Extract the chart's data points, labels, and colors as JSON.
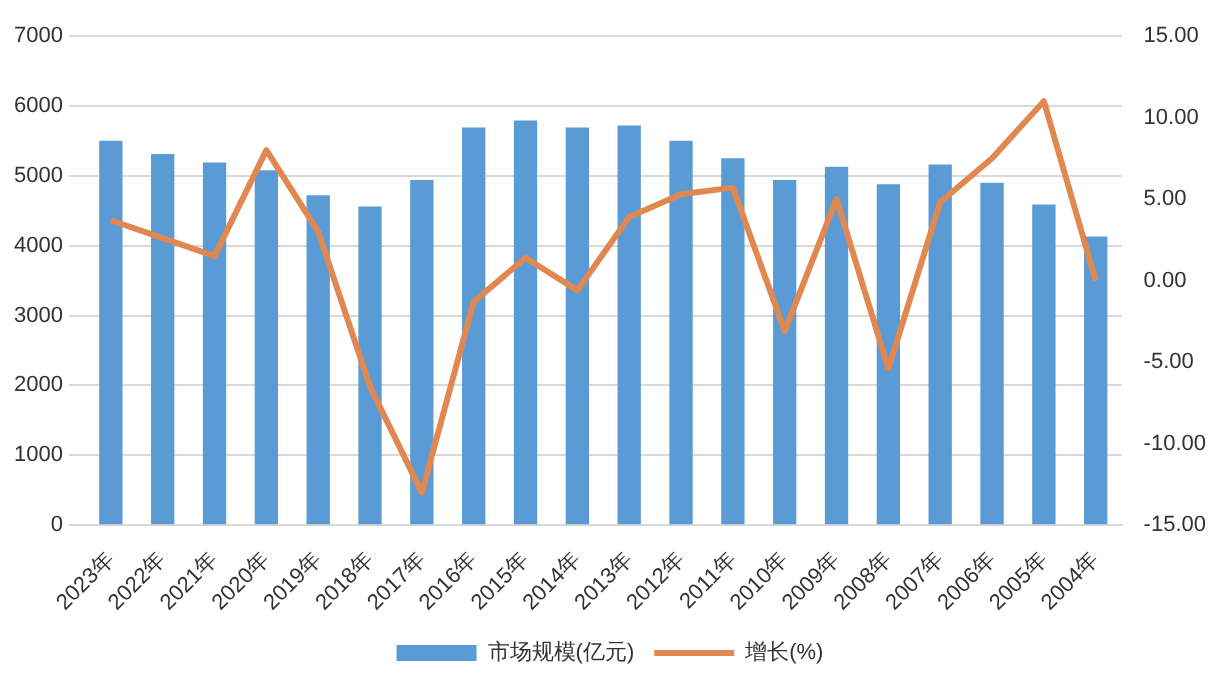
{
  "chart_data": {
    "type": "bar",
    "categories": [
      "2023年",
      "2022年",
      "2021年",
      "2020年",
      "2019年",
      "2018年",
      "2017年",
      "2016年",
      "2015年",
      "2014年",
      "2013年",
      "2012年",
      "2011年",
      "2010年",
      "2009年",
      "2008年",
      "2007年",
      "2006年",
      "2005年",
      "2004年"
    ],
    "series": [
      {
        "name": "市场规模(亿元)",
        "color": "#5b9bd5",
        "values": [
          5500,
          5310,
          5190,
          5080,
          4720,
          4560,
          4940,
          5690,
          5790,
          5690,
          5720,
          5500,
          5250,
          4940,
          5130,
          4880,
          5160,
          4900,
          4590,
          4130
        ]
      },
      {
        "name": "增长(%)",
        "type": "line",
        "axis": "y2",
        "color": "#e0884f",
        "values": [
          3.7,
          2.6,
          1.5,
          8.0,
          3.0,
          -6.5,
          -13.0,
          -1.3,
          1.4,
          -0.6,
          3.9,
          5.3,
          5.7,
          -3.1,
          5.0,
          -5.4,
          4.8,
          7.5,
          11.0,
          0.0
        ]
      }
    ],
    "ylim": [
      0,
      7000
    ],
    "yticks": [
      0,
      1000,
      2000,
      3000,
      4000,
      5000,
      6000,
      7000
    ],
    "y2lim": [
      -15,
      15
    ],
    "y2ticks": [
      {
        "value": -15,
        "label": "-15.00"
      },
      {
        "value": -10,
        "label": "-10.00"
      },
      {
        "value": -5,
        "label": "-5.00"
      },
      {
        "value": 0,
        "label": "0.00"
      },
      {
        "value": 5,
        "label": "5.00"
      },
      {
        "value": 10,
        "label": "10.00"
      },
      {
        "value": 15,
        "label": "15.00"
      }
    ],
    "grid": "y",
    "legend": "bottom",
    "marker": "none",
    "line_style": "solid"
  }
}
